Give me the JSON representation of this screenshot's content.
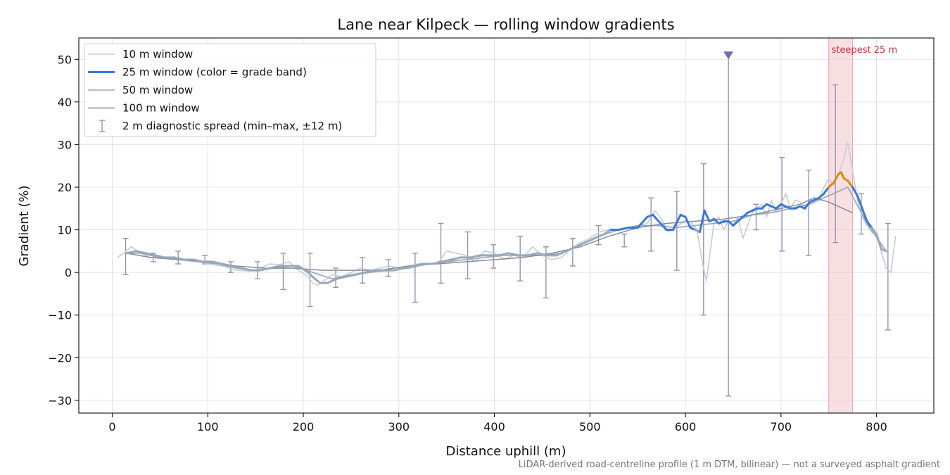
{
  "chart_data": {
    "type": "line",
    "title": "Lane near Kilpeck — rolling window gradients",
    "xlabel": "Distance uphill (m)",
    "ylabel": "Gradient (%)",
    "xlim": [
      -35,
      860
    ],
    "ylim": [
      -33,
      55
    ],
    "xticks": [
      0,
      100,
      200,
      300,
      400,
      500,
      600,
      700,
      800
    ],
    "yticks": [
      -30,
      -20,
      -10,
      0,
      10,
      20,
      30,
      40,
      50
    ],
    "grid": true,
    "legend_position": "top-left",
    "footnote": "LiDAR-derived road-centreline profile (1 m DTM, bilinear) — not a surveyed asphalt gradient",
    "colors": {
      "w10": "#c5ccd6",
      "w25_band_a": "#9aa8ba",
      "w25_band_b": "#3a78d8",
      "w25_band_c": "#d98a0f",
      "w50": "#9aa6b6",
      "w100": "#7f8796",
      "diag": "#9a8fb4",
      "marker": "#7a6aa8",
      "shade": "#f2c6cb",
      "steep_label": "#c8323e"
    },
    "legend": [
      {
        "key": "w10",
        "label": "10 m window"
      },
      {
        "key": "w25",
        "label": "25 m window (color = grade band)"
      },
      {
        "key": "w50",
        "label": "50 m window"
      },
      {
        "key": "w100",
        "label": "100 m window"
      },
      {
        "key": "diag",
        "label": "2 m diagnostic spread (min–max, ±12 m)"
      }
    ],
    "highlight": {
      "x0": 750,
      "x1": 775,
      "label": "steepest 25 m"
    },
    "marker_point": {
      "x": 645,
      "y": 51
    },
    "series": [
      {
        "key": "w10",
        "x": [
          5,
          12,
          20,
          30,
          40,
          55,
          70,
          85,
          100,
          115,
          130,
          145,
          155,
          165,
          175,
          185,
          195,
          205,
          210,
          215,
          222,
          230,
          240,
          250,
          260,
          270,
          280,
          290,
          300,
          310,
          320,
          330,
          340,
          350,
          360,
          370,
          380,
          390,
          400,
          410,
          420,
          430,
          440,
          450,
          460,
          470,
          480,
          490,
          500,
          510,
          520,
          530,
          540,
          550,
          560,
          568,
          575,
          582,
          590,
          598,
          605,
          612,
          618,
          622,
          626,
          630,
          635,
          640,
          645,
          650,
          655,
          660,
          665,
          670,
          675,
          680,
          685,
          690,
          695,
          700,
          705,
          710,
          715,
          720,
          725,
          730,
          735,
          740,
          745,
          750,
          755,
          760,
          765,
          770,
          775,
          780,
          785,
          790,
          795,
          800,
          805,
          810,
          815,
          820
        ],
        "y": [
          3.5,
          4.5,
          6.0,
          4.5,
          3.5,
          3.5,
          3.0,
          2.8,
          2.0,
          1.5,
          0.5,
          0.3,
          1.0,
          2.0,
          1.8,
          2.5,
          0.5,
          -1.0,
          -2.5,
          -3.0,
          -2.0,
          -0.5,
          -1.0,
          0.0,
          1.0,
          0.5,
          1.0,
          1.5,
          1.0,
          1.5,
          2.0,
          2.0,
          2.0,
          5.0,
          4.5,
          4.0,
          2.5,
          5.0,
          4.5,
          3.0,
          4.0,
          3.5,
          6.0,
          4.0,
          3.0,
          3.5,
          5.5,
          7.0,
          8.0,
          9.5,
          10.0,
          10.0,
          10.5,
          11.0,
          11.5,
          14.5,
          12.5,
          9.5,
          10.5,
          12.0,
          12.0,
          10.0,
          2.0,
          -2.0,
          5.0,
          12.0,
          13.0,
          10.0,
          12.0,
          11.0,
          13.0,
          8.0,
          11.0,
          14.0,
          15.0,
          16.0,
          13.0,
          17.0,
          14.0,
          16.0,
          18.5,
          15.0,
          17.0,
          16.5,
          15.5,
          16.5,
          17.0,
          17.5,
          20.0,
          22.0,
          20.5,
          23.0,
          26.0,
          30.5,
          24.0,
          17.0,
          13.0,
          11.0,
          9.5,
          8.5,
          5.0,
          1.0,
          0.0,
          8.5
        ]
      },
      {
        "key": "w25",
        "x": [
          15,
          25,
          35,
          45,
          55,
          65,
          75,
          85,
          95,
          105,
          115,
          125,
          135,
          145,
          155,
          165,
          175,
          185,
          195,
          205,
          212,
          218,
          225,
          235,
          245,
          255,
          265,
          275,
          285,
          295,
          305,
          315,
          325,
          335,
          345,
          355,
          365,
          375,
          385,
          395,
          405,
          415,
          425,
          435,
          445,
          455,
          465,
          475,
          485,
          495,
          505,
          515,
          522,
          530,
          540,
          550,
          560,
          566,
          572,
          580,
          587,
          595,
          600,
          605,
          610,
          615,
          620,
          625,
          630,
          635,
          640,
          645,
          650,
          655,
          660,
          665,
          670,
          675,
          680,
          685,
          690,
          695,
          700,
          705,
          710,
          715,
          720,
          725,
          730,
          735,
          740,
          745,
          750,
          755,
          760,
          763,
          766,
          770,
          775,
          780,
          785,
          790,
          795,
          800,
          805,
          810
        ],
        "y": [
          4.5,
          5.0,
          4.5,
          4.0,
          3.5,
          3.5,
          3.0,
          3.0,
          2.5,
          2.5,
          2.0,
          1.5,
          1.0,
          0.5,
          0.5,
          1.0,
          1.5,
          1.5,
          1.5,
          0.0,
          -1.5,
          -2.5,
          -2.5,
          -1.5,
          -1.0,
          -0.5,
          0.0,
          0.5,
          0.5,
          0.5,
          1.0,
          1.5,
          2.0,
          2.0,
          2.5,
          3.0,
          3.5,
          3.5,
          4.0,
          4.0,
          4.0,
          4.5,
          4.0,
          4.0,
          4.5,
          4.0,
          4.0,
          5.0,
          6.0,
          7.0,
          8.0,
          9.0,
          10.0,
          10.0,
          10.5,
          10.5,
          13.0,
          13.5,
          12.0,
          10.0,
          10.0,
          13.5,
          13.0,
          10.5,
          10.0,
          9.5,
          14.5,
          12.0,
          12.5,
          11.5,
          12.0,
          12.0,
          11.0,
          12.0,
          13.0,
          14.0,
          14.5,
          15.0,
          15.0,
          16.0,
          15.5,
          15.0,
          16.0,
          15.5,
          15.0,
          15.0,
          15.5,
          15.0,
          16.5,
          17.0,
          17.5,
          18.5,
          20.0,
          21.0,
          23.0,
          23.5,
          22.0,
          21.5,
          20.0,
          18.0,
          15.0,
          12.0,
          10.5,
          9.0,
          5.5,
          5.0
        ],
        "bands": [
          {
            "range": [
              -100,
              10
            ],
            "color_key": "w25_band_a"
          },
          {
            "range": [
              10,
              20
            ],
            "color_key": "w25_band_b"
          },
          {
            "range": [
              20,
              100
            ],
            "color_key": "w25_band_c"
          }
        ]
      },
      {
        "key": "w50",
        "x": [
          15,
          30,
          50,
          70,
          90,
          110,
          130,
          150,
          170,
          190,
          210,
          230,
          250,
          270,
          290,
          310,
          330,
          350,
          370,
          390,
          410,
          430,
          450,
          470,
          490,
          510,
          530,
          550,
          570,
          590,
          610,
          630,
          650,
          670,
          690,
          710,
          730,
          750,
          770,
          790,
          810
        ],
        "y": [
          4.5,
          4.5,
          3.5,
          3.0,
          2.5,
          2.0,
          1.0,
          0.5,
          1.0,
          1.5,
          0.0,
          -1.5,
          -0.5,
          0.0,
          0.5,
          1.0,
          2.0,
          2.5,
          3.0,
          3.5,
          4.0,
          4.0,
          4.0,
          4.5,
          6.5,
          8.5,
          10.0,
          11.0,
          11.0,
          10.5,
          11.0,
          11.5,
          12.0,
          13.5,
          14.0,
          15.0,
          16.0,
          18.0,
          20.0,
          11.5,
          5.0
        ]
      },
      {
        "key": "w100",
        "x": [
          15,
          40,
          70,
          100,
          130,
          160,
          190,
          220,
          250,
          280,
          310,
          340,
          370,
          400,
          430,
          460,
          490,
          520,
          550,
          580,
          610,
          640,
          670,
          700,
          720,
          735,
          750,
          765,
          775
        ],
        "y": [
          4.5,
          3.5,
          3.0,
          2.5,
          1.5,
          1.0,
          1.0,
          0.5,
          0.5,
          0.5,
          1.5,
          2.0,
          2.5,
          3.0,
          3.5,
          4.5,
          6.0,
          8.5,
          10.5,
          11.5,
          12.0,
          12.5,
          13.5,
          15.0,
          16.0,
          17.5,
          16.5,
          15.0,
          14.0
        ]
      }
    ],
    "diagnostic": {
      "x": [
        14,
        43,
        69,
        97,
        124,
        152,
        179,
        207,
        234,
        262,
        289,
        317,
        344,
        372,
        399,
        427,
        454,
        482,
        509,
        536,
        564,
        591,
        619,
        645,
        674,
        701,
        729,
        757,
        784,
        812
      ],
      "ymin": [
        -0.5,
        2.5,
        2.0,
        2.0,
        0.0,
        -1.5,
        -4.0,
        -8.0,
        -3.5,
        -2.5,
        -1.0,
        -7.0,
        -2.5,
        -1.5,
        1.0,
        -2.0,
        -6.0,
        1.5,
        6.5,
        6.0,
        5.0,
        0.5,
        -10.0,
        -29.0,
        10.0,
        5.0,
        4.0,
        7.0,
        9.0,
        -13.5
      ],
      "ymax": [
        8.0,
        4.5,
        5.0,
        4.0,
        2.5,
        2.5,
        4.5,
        4.5,
        1.0,
        3.5,
        3.0,
        4.5,
        11.5,
        9.5,
        6.5,
        8.5,
        6.0,
        8.0,
        11.0,
        9.0,
        17.5,
        19.0,
        25.5,
        51.0,
        16.0,
        27.0,
        24.0,
        44.0,
        18.5,
        11.5
      ]
    }
  }
}
